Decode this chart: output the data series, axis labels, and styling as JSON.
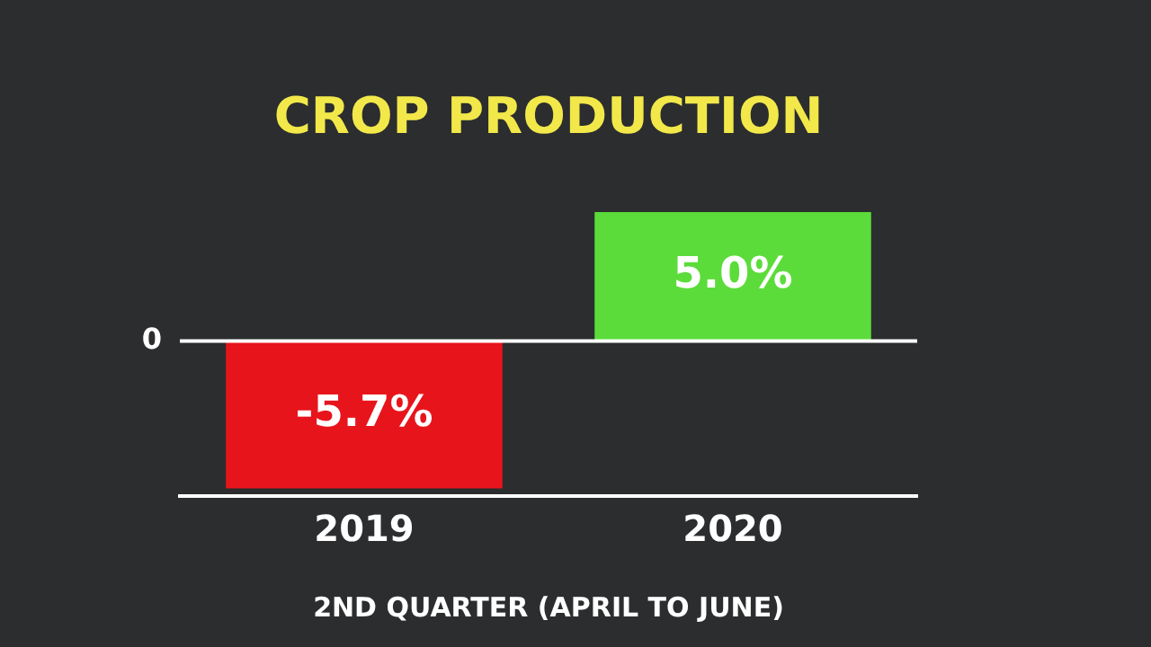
{
  "chart_data": {
    "type": "bar",
    "title": "CROP PRODUCTION",
    "xlabel": "2ND QUARTER (APRIL TO JUNE)",
    "categories": [
      "2019",
      "2020"
    ],
    "values": [
      -5.7,
      5.0
    ],
    "colors": [
      "#e8141c",
      "#5bdc3a"
    ],
    "value_labels": [
      "-5.7%",
      "5.0%"
    ],
    "annotations": [
      "0"
    ],
    "legend": false
  }
}
